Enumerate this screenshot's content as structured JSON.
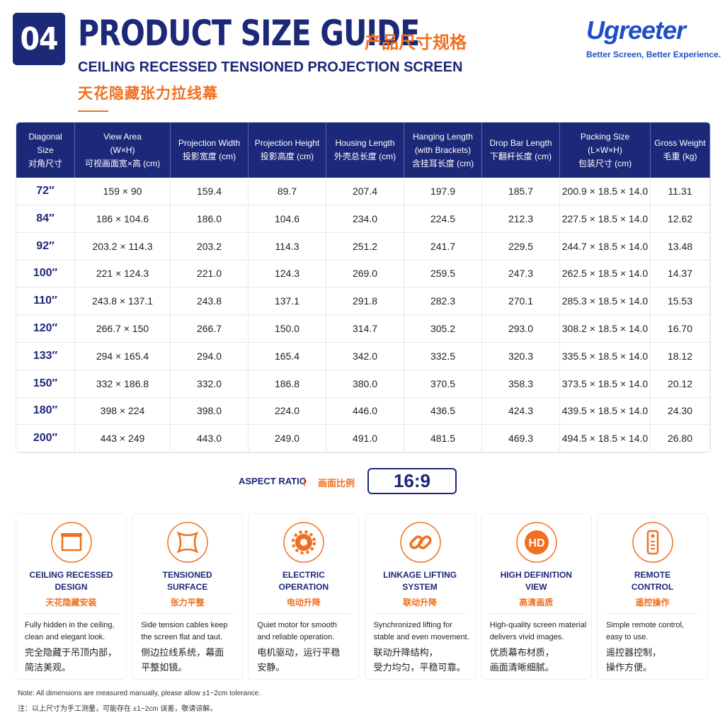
{
  "header": {
    "number": "04",
    "title": "PRODUCT SIZE GUIDE",
    "title_cn": "产品尺寸规格",
    "subtitle": "CEILING RECESSED TENSIONED PROJECTION SCREEN",
    "subtitle_cn": "天花隐藏张力拉线幕"
  },
  "brand": {
    "name": "Ugreeter",
    "tagline": "Better Screen, Better Experience."
  },
  "table": {
    "headers": [
      [
        "Diagonal",
        "Size",
        "对角尺寸"
      ],
      [
        "View Area",
        "(W×H)",
        "可视画面宽×高 (cm)"
      ],
      [
        "Projection Width",
        "投影宽度 (cm)"
      ],
      [
        "Projection Height",
        "投影高度 (cm)"
      ],
      [
        "Housing Length",
        "外壳总长度 (cm)"
      ],
      [
        "Hanging Length",
        "(with Brackets)",
        "含挂耳长度 (cm)"
      ],
      [
        "Drop Bar Length",
        "下翻杆长度 (cm)"
      ],
      [
        "Packing Size",
        "(L×W×H)",
        "包装尺寸 (cm)"
      ],
      [
        "Gross Weight",
        "毛重 (kg)"
      ]
    ],
    "rows": [
      [
        "72″",
        "159 × 90",
        "159.4",
        "89.7",
        "207.4",
        "197.9",
        "185.7",
        "200.9 × 18.5 × 14.0",
        "11.31"
      ],
      [
        "84″",
        "186 × 104.6",
        "186.0",
        "104.6",
        "234.0",
        "224.5",
        "212.3",
        "227.5 × 18.5 × 14.0",
        "12.62"
      ],
      [
        "92″",
        "203.2 × 114.3",
        "203.2",
        "114.3",
        "251.2",
        "241.7",
        "229.5",
        "244.7 × 18.5 × 14.0",
        "13.48"
      ],
      [
        "100″",
        "221 × 124.3",
        "221.0",
        "124.3",
        "269.0",
        "259.5",
        "247.3",
        "262.5 × 18.5 × 14.0",
        "14.37"
      ],
      [
        "110″",
        "243.8 × 137.1",
        "243.8",
        "137.1",
        "291.8",
        "282.3",
        "270.1",
        "285.3 × 18.5 × 14.0",
        "15.53"
      ],
      [
        "120″",
        "266.7 × 150",
        "266.7",
        "150.0",
        "314.7",
        "305.2",
        "293.0",
        "308.2 × 18.5 × 14.0",
        "16.70"
      ],
      [
        "133″",
        "294 × 165.4",
        "294.0",
        "165.4",
        "342.0",
        "332.5",
        "320.3",
        "335.5 × 18.5 × 14.0",
        "18.12"
      ],
      [
        "150″",
        "332 × 186.8",
        "332.0",
        "186.8",
        "380.0",
        "370.5",
        "358.3",
        "373.5 × 18.5 × 14.0",
        "20.12"
      ],
      [
        "180″",
        "398 × 224",
        "398.0",
        "224.0",
        "446.0",
        "436.5",
        "424.3",
        "439.5 × 18.5 × 14.0",
        "24.30"
      ],
      [
        "200″",
        "443 × 249",
        "443.0",
        "249.0",
        "491.0",
        "481.5",
        "469.3",
        "494.5 × 18.5 × 14.0",
        "26.80"
      ]
    ]
  },
  "aspect": {
    "label": "ASPECT RATIO",
    "label_cn": "画面比例",
    "value": "16:9"
  },
  "features": [
    {
      "title": [
        "CEILING RECESSED",
        "DESIGN"
      ],
      "title_cn": "天花隐藏安装",
      "desc": [
        "Fully hidden in the ceiling,",
        "clean and elegant look."
      ],
      "desc_cn": [
        "完全隐藏于吊顶内部，",
        "简洁美观。"
      ]
    },
    {
      "title": [
        "TENSIONED",
        "SURFACE"
      ],
      "title_cn": "张力平整",
      "desc": [
        "Side tension cables keep",
        "the screen flat and taut."
      ],
      "desc_cn": [
        "侧边拉线系统，幕面",
        "平整如镜。"
      ]
    },
    {
      "title": [
        "ELECTRIC",
        "OPERATION"
      ],
      "title_cn": "电动升降",
      "desc": [
        "Quiet motor for smooth",
        "and reliable operation."
      ],
      "desc_cn": [
        "电机驱动，运行平稳",
        "安静。"
      ]
    },
    {
      "title": [
        "LINKAGE LIFTING",
        "SYSTEM"
      ],
      "title_cn": "联动升降",
      "desc": [
        "Synchronized lifting for",
        "stable and even movement."
      ],
      "desc_cn": [
        "联动升降结构，",
        "受力均匀，平稳可靠。"
      ]
    },
    {
      "title": [
        "HIGH DEFINITION",
        "VIEW"
      ],
      "title_cn": "高清画质",
      "icon_text": "HD",
      "desc": [
        "High-quality screen material",
        "delivers vivid images."
      ],
      "desc_cn": [
        "优质幕布材质，",
        "画面清晰细腻。"
      ]
    },
    {
      "title": [
        "REMOTE",
        "CONTROL"
      ],
      "title_cn": "遥控操作",
      "desc": [
        "Simple remote control,",
        "easy to use."
      ],
      "desc_cn": [
        "遥控器控制，",
        "操作方便。"
      ]
    }
  ],
  "notes": [
    "Note: All dimensions are measured manually, please allow ±1~2cm tolerance.",
    "注：以上尺寸为手工测量，可能存在 ±1~2cm 误差，敬请谅解。"
  ]
}
